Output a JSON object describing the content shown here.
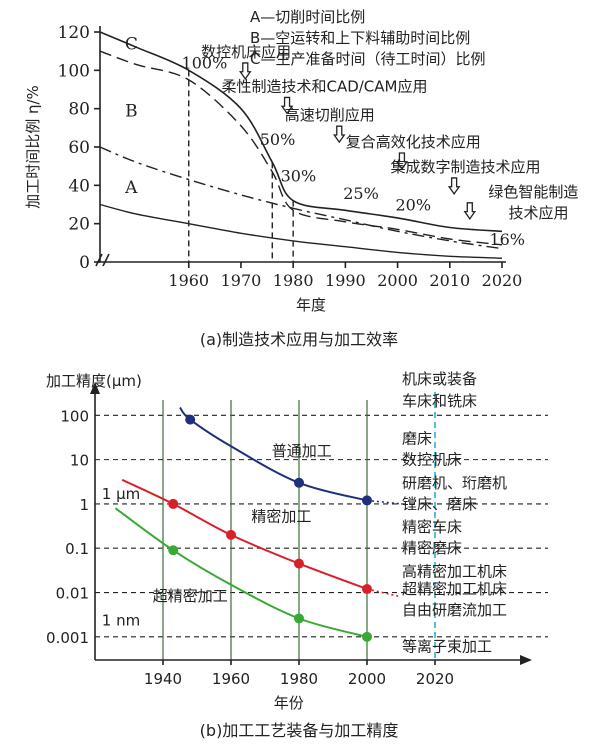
{
  "chart_data": [
    {
      "type": "line",
      "caption": "(a)制造技术应用与加工效率",
      "xlabel": "年度",
      "ylabel": "加工时间比例 η/%",
      "x_ticks": [
        1960,
        1970,
        1980,
        1990,
        2000,
        2010,
        2020
      ],
      "y_ticks": [
        0,
        20,
        40,
        60,
        80,
        100,
        120
      ],
      "xlim": [
        1943,
        2020
      ],
      "ylim": [
        0,
        120
      ],
      "series": [
        {
          "name": "C",
          "x": [
            1943,
            1950,
            1960,
            1970,
            1976,
            1980,
            1990,
            2000,
            2010,
            2020
          ],
          "y": [
            120,
            112,
            100,
            80,
            52,
            32,
            27,
            23,
            18,
            16
          ]
        },
        {
          "name": "B",
          "x": [
            1943,
            1950,
            1960,
            1970,
            1976,
            1980,
            1990,
            2000,
            2010,
            2020
          ],
          "y": [
            110,
            103,
            95,
            71,
            47,
            27,
            21,
            17,
            12,
            9
          ]
        },
        {
          "name": "A",
          "x": [
            1943,
            1950,
            1960,
            1970,
            1980,
            1990,
            2000,
            2010,
            2020
          ],
          "y": [
            60,
            52,
            43,
            35,
            28,
            22,
            16,
            11,
            7
          ]
        },
        {
          "name": "",
          "x": [
            1943,
            1950,
            1960,
            1970,
            1980,
            1990,
            2000,
            2010,
            2020
          ],
          "y": [
            30,
            25,
            20,
            15,
            11,
            8,
            5,
            3,
            2
          ]
        }
      ],
      "percent_labels": [
        {
          "text": "100%",
          "x": 1963,
          "y": 101
        },
        {
          "text": "50%",
          "x": 1977,
          "y": 61
        },
        {
          "text": "30%",
          "x": 1981,
          "y": 42
        },
        {
          "text": "25%",
          "x": 1993,
          "y": 33
        },
        {
          "text": "20%",
          "x": 2003,
          "y": 27
        },
        {
          "text": "16%",
          "x": 2021,
          "y": 9
        }
      ],
      "legend": [
        "A—切削时间比例",
        "B—空运转和上下料辅助时间比例",
        "C—生产准备时间（待工时间）比例"
      ],
      "annotations": [
        {
          "text": "数控机床应用",
          "x": 1971,
          "y": 107,
          "arrow_x": 1967
        },
        {
          "text": "柔性制造技术和CAD/CAM应用",
          "x": 1986,
          "y": 89,
          "arrow_x": 1975
        },
        {
          "text": "高速切削应用",
          "x": 1987,
          "y": 74,
          "arrow_x": 1985
        },
        {
          "text": "复合高效化技术应用",
          "x": 2003,
          "y": 60,
          "arrow_x": 1997
        },
        {
          "text": "集成数字制造技术应用",
          "x": 2013,
          "y": 47,
          "arrow_x": 2007
        },
        {
          "text": "绿色智能制造",
          "x": 2026,
          "y": 34,
          "arrow_x": 2010
        },
        {
          "text": "技术应用",
          "x": 2027,
          "y": 23
        }
      ],
      "vertical_dashed_years": [
        1960,
        1976,
        1980
      ]
    },
    {
      "type": "line",
      "caption": "(b)加工工艺装备与加工精度",
      "xlabel": "年份",
      "ylabel": "加工精度(μm)",
      "y_scale": "log",
      "x_ticks": [
        1940,
        1960,
        1980,
        2000,
        2020
      ],
      "y_ticks": [
        "100",
        "10",
        "1",
        "0.1",
        "0.01",
        "0.001"
      ],
      "y_tick_values": [
        100,
        10,
        1,
        0.1,
        0.01,
        0.001
      ],
      "xlim": [
        1920,
        2045
      ],
      "ylim": [
        0.0003,
        200
      ],
      "colors": {
        "普通加工": "#1f2f7a",
        "精密加工": "#d9202a",
        "超精密加工": "#39a935",
        "cyan": "#2aaed6"
      },
      "series": [
        {
          "name": "普通加工",
          "x": [
            1945,
            1948,
            1960,
            1980,
            2000,
            2010
          ],
          "y": [
            150,
            80,
            20,
            3,
            1.2,
            1.0
          ],
          "dots": [
            [
              1948,
              80
            ],
            [
              1980,
              3
            ],
            [
              2000,
              1.2
            ]
          ]
        },
        {
          "name": "精密加工",
          "x": [
            1928,
            1943,
            1960,
            1980,
            2000,
            2010
          ],
          "y": [
            3.5,
            1.0,
            0.2,
            0.045,
            0.012,
            0.008
          ],
          "dots": [
            [
              1943,
              1.0
            ],
            [
              1960,
              0.2
            ],
            [
              1980,
              0.045
            ],
            [
              2000,
              0.012
            ]
          ]
        },
        {
          "name": "超精密加工",
          "x": [
            1926,
            1943,
            1960,
            1980,
            2000
          ],
          "y": [
            0.8,
            0.09,
            0.015,
            0.0026,
            0.001
          ],
          "dots": [
            [
              1943,
              0.09
            ],
            [
              1980,
              0.0026
            ],
            [
              2000,
              0.001
            ]
          ]
        }
      ],
      "inline_labels": [
        {
          "text": "普通加工",
          "x": 1972,
          "y": 12
        },
        {
          "text": "精密加工",
          "x": 1966,
          "y": 0.4
        },
        {
          "text": "超精密加工",
          "x": 1937,
          "y": 0.0065
        },
        {
          "text": "1 μm",
          "x": 1922,
          "y": 1.3
        },
        {
          "text": "1 nm",
          "x": 1922,
          "y": 0.0018
        }
      ],
      "equipment_header": [
        "机床或装备",
        "车床和铣床"
      ],
      "equipment_labels": [
        {
          "text": "磨床",
          "y": 30
        },
        {
          "text": "数控机床",
          "y": 10
        },
        {
          "text": "研磨机、珩磨机",
          "y": 3
        },
        {
          "text": "镗床、磨床",
          "y": 1
        },
        {
          "text": "精密车床",
          "y": 0.3
        },
        {
          "text": "精密磨床",
          "y": 0.1
        },
        {
          "text": "高精密加工机床",
          "y": 0.03
        },
        {
          "text": "超精密加工机床",
          "y": 0.012
        },
        {
          "text": "自由研磨流加工",
          "y": 0.004
        },
        {
          "text": "等离子束加工",
          "y": 0.0006
        }
      ],
      "vertical_lines": [
        1940,
        1960,
        1980,
        2000,
        2020
      ]
    }
  ]
}
